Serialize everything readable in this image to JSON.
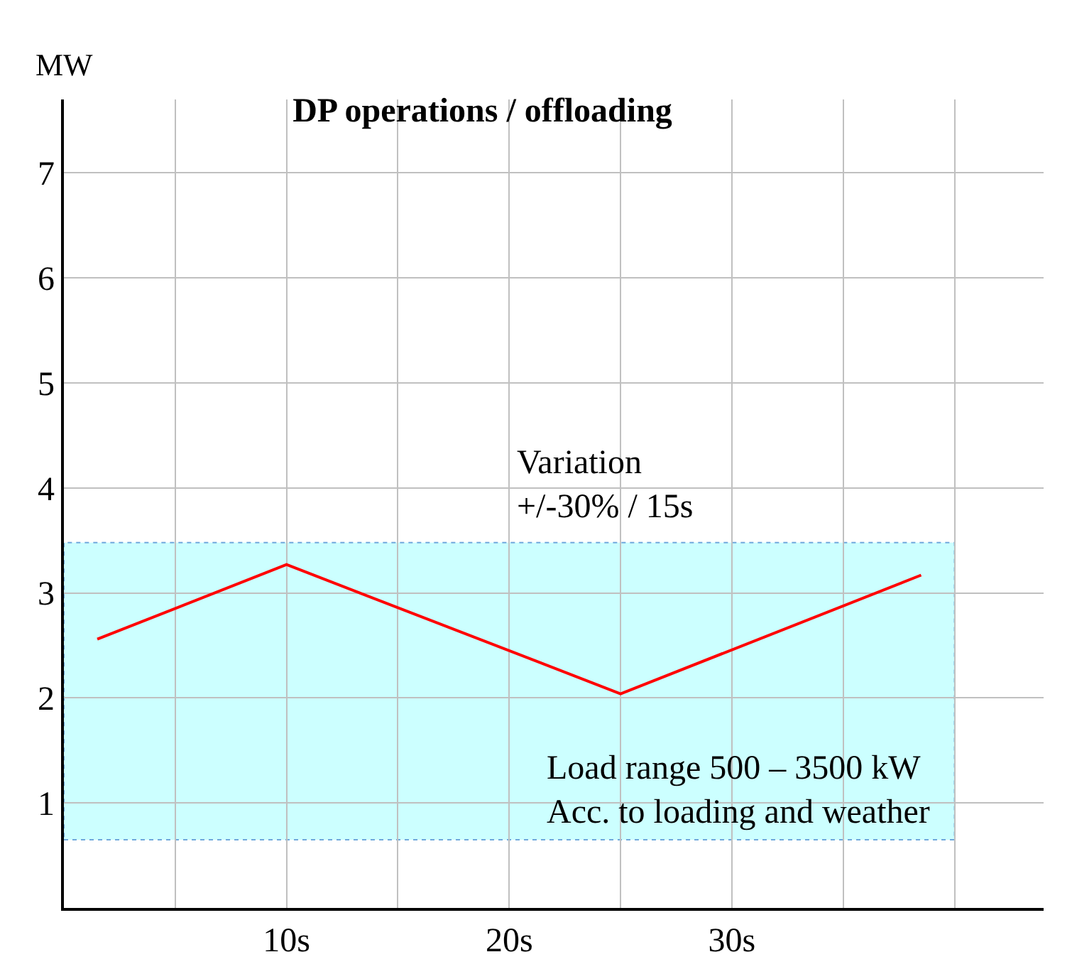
{
  "chart_data": {
    "type": "line",
    "title": "DP operations / offloading",
    "ylabel": "MW",
    "x": [
      1.5,
      10,
      25,
      38.5
    ],
    "series": [
      {
        "color": "#ff0000",
        "values": [
          2.56,
          3.27,
          2.04,
          3.17
        ]
      }
    ],
    "xlim": [
      0,
      44
    ],
    "ylim": [
      0,
      7.7
    ],
    "xticks": [
      {
        "value": 5,
        "label": null
      },
      {
        "value": 10,
        "label": "10s"
      },
      {
        "value": 15,
        "label": null
      },
      {
        "value": 20,
        "label": "20s"
      },
      {
        "value": 25,
        "label": null
      },
      {
        "value": 30,
        "label": "30s"
      },
      {
        "value": 35,
        "label": null
      },
      {
        "value": 40,
        "label": null
      }
    ],
    "yticks": [
      1,
      2,
      3,
      4,
      5,
      6,
      7
    ],
    "bands": [
      {
        "axis": "y",
        "from": 0.65,
        "to": 3.48,
        "label": "Load range 500 – 3500 kW\nAcc. to loading and weather",
        "color": "#ccffff"
      }
    ],
    "annotations": [
      "Variation\n+/-30% / 15s"
    ],
    "grid": true,
    "legend": false,
    "marker": "none",
    "line_style": "solid"
  }
}
